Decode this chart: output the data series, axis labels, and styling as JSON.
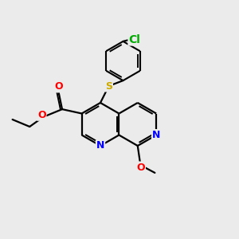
{
  "background_color": "#ebebeb",
  "bond_color": "#000000",
  "bond_width": 1.6,
  "atom_colors": {
    "N": "#0000ff",
    "O": "#ff0000",
    "S": "#ccaa00",
    "Cl": "#00aa00",
    "C": "#000000"
  },
  "font_size": 9,
  "fig_size": [
    3.0,
    3.0
  ],
  "dpi": 100
}
